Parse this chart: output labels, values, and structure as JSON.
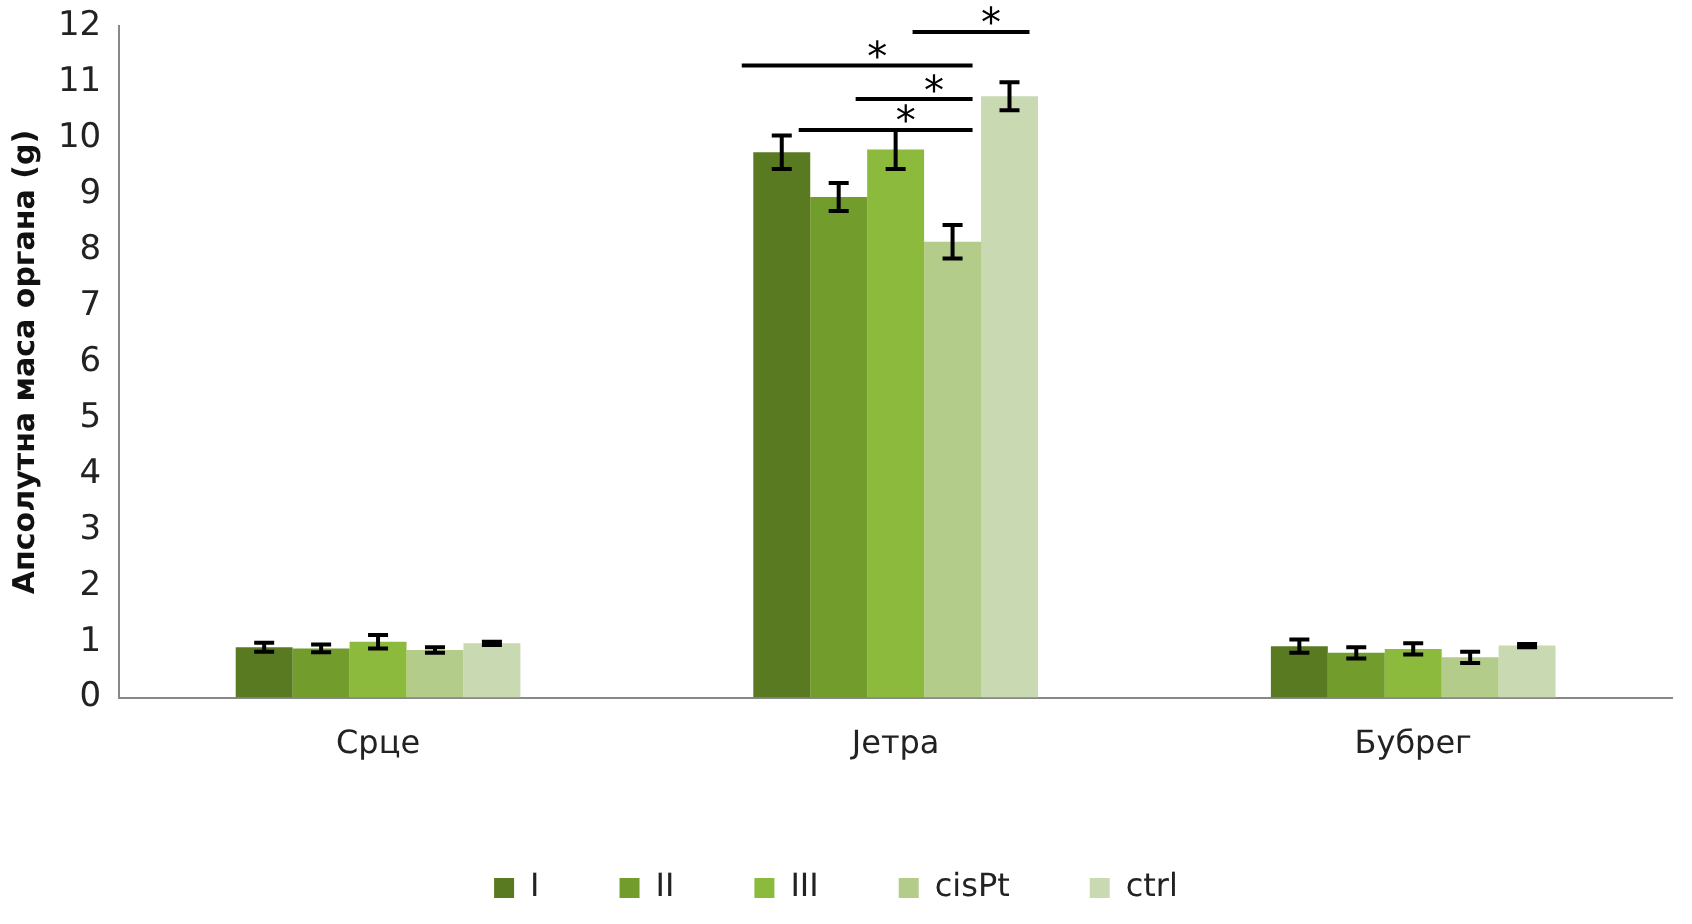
{
  "chart_data": {
    "type": "bar",
    "ylabel": "Апсолутна маса органа (g)",
    "categories": [
      "Срце",
      "Јетра",
      "Бубрег"
    ],
    "series": [
      {
        "name": "I",
        "color": "#5a7a22",
        "values": [
          0.9,
          9.75,
          0.92
        ],
        "errors": [
          0.08,
          0.3,
          0.12
        ]
      },
      {
        "name": "II",
        "color": "#729c2c",
        "values": [
          0.88,
          8.95,
          0.8
        ],
        "errors": [
          0.07,
          0.25,
          0.1
        ]
      },
      {
        "name": "III",
        "color": "#8cba3c",
        "values": [
          1.0,
          9.8,
          0.87
        ],
        "errors": [
          0.12,
          0.35,
          0.1
        ]
      },
      {
        "name": "cisPt",
        "color": "#b3cc8a",
        "values": [
          0.85,
          8.15,
          0.72
        ],
        "errors": [
          0.05,
          0.3,
          0.1
        ]
      },
      {
        "name": "ctrl",
        "color": "#c9d9b2",
        "values": [
          0.97,
          10.75,
          0.93
        ],
        "errors": [
          0.03,
          0.25,
          0.03
        ]
      }
    ],
    "ylim": [
      0,
      12
    ],
    "yticks": [
      0,
      1,
      2,
      3,
      4,
      5,
      6,
      7,
      8,
      9,
      10,
      11,
      12
    ],
    "grid": false,
    "legend": "bottom",
    "annotations": [
      "*",
      "*",
      "*",
      "*"
    ]
  }
}
